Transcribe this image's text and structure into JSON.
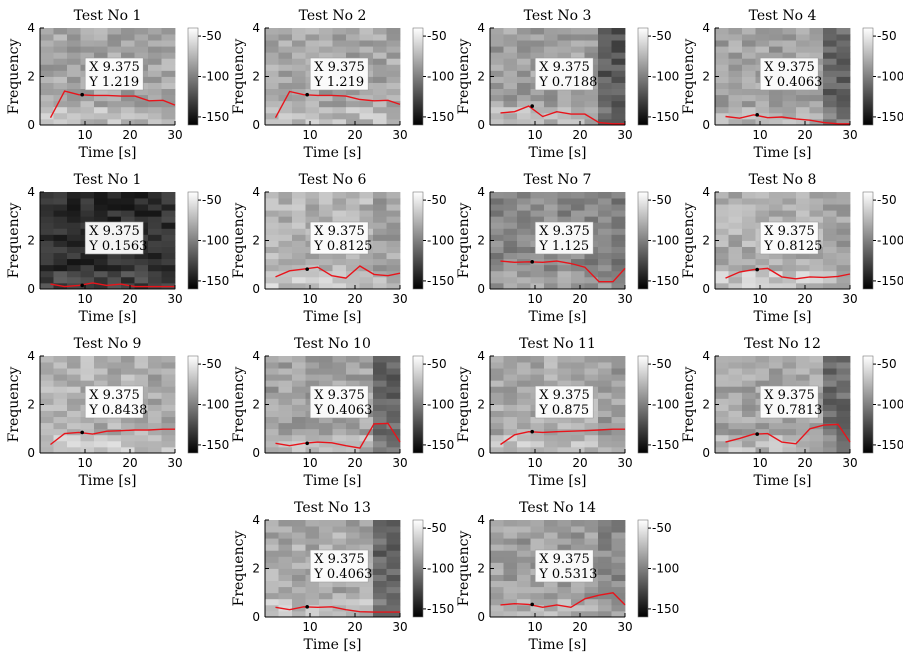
{
  "chart_data": [
    {
      "type": "heatmap",
      "title": "Test No 1",
      "xlabel": "Time [s]",
      "ylabel": "Frequency",
      "xlim": [
        0,
        30
      ],
      "ylim": [
        0,
        4
      ],
      "xticks": [
        "10",
        "20",
        "30"
      ],
      "yticks": [
        "0",
        "2",
        "4"
      ],
      "colorbar": {
        "ticks": [
          "-50",
          "-100",
          "-150"
        ],
        "range": [
          -160,
          -40
        ]
      },
      "base_level": -82,
      "late_level": -82,
      "line": {
        "x": [
          2.34,
          5.47,
          8.59,
          11.72,
          14.84,
          17.97,
          21.09,
          24.22,
          27.34,
          30.0
        ],
        "y": [
          0.3,
          1.4,
          1.25,
          1.22,
          1.22,
          1.19,
          1.19,
          1.0,
          1.02,
          0.82
        ]
      },
      "datatip": {
        "x_label": "X 9.375",
        "y_label": "Y 1.219"
      }
    },
    {
      "type": "heatmap",
      "title": "Test No 2",
      "xlabel": "Time [s]",
      "ylabel": "Frequency",
      "xlim": [
        0,
        30
      ],
      "ylim": [
        0,
        4
      ],
      "xticks": [
        "10",
        "20",
        "30"
      ],
      "yticks": [
        "0",
        "2",
        "4"
      ],
      "colorbar": {
        "ticks": [
          "-50",
          "-100",
          "-150"
        ],
        "range": [
          -160,
          -40
        ]
      },
      "base_level": -82,
      "late_level": -82,
      "line": {
        "x": [
          2.34,
          5.47,
          8.59,
          11.72,
          14.84,
          17.97,
          21.09,
          24.22,
          27.34,
          30.0
        ],
        "y": [
          0.3,
          1.38,
          1.25,
          1.22,
          1.22,
          1.19,
          1.05,
          1.0,
          1.02,
          0.85
        ]
      },
      "datatip": {
        "x_label": "X 9.375",
        "y_label": "Y 1.219"
      }
    },
    {
      "type": "heatmap",
      "title": "Test No 3",
      "xlabel": "Time [s]",
      "ylabel": "Frequency",
      "xlim": [
        0,
        30
      ],
      "ylim": [
        0,
        4
      ],
      "xticks": [
        "10",
        "20",
        "30"
      ],
      "yticks": [
        "0",
        "2",
        "4"
      ],
      "colorbar": {
        "ticks": [
          "-50",
          "-100",
          "-150"
        ],
        "range": [
          -160,
          -40
        ]
      },
      "base_level": -85,
      "late_level": -118,
      "line": {
        "x": [
          2.34,
          5.47,
          8.59,
          11.72,
          14.84,
          17.97,
          21.09,
          24.22,
          27.34,
          30.0
        ],
        "y": [
          0.5,
          0.55,
          0.78,
          0.35,
          0.55,
          0.45,
          0.45,
          0.1,
          0.05,
          0.05
        ]
      },
      "datatip": {
        "x_label": "X 9.375",
        "y_label": "Y 0.7188"
      }
    },
    {
      "type": "heatmap",
      "title": "Test No 4",
      "xlabel": "Time [s]",
      "ylabel": "Frequency",
      "xlim": [
        0,
        30
      ],
      "ylim": [
        0,
        4
      ],
      "xticks": [
        "10",
        "20",
        "30"
      ],
      "yticks": [
        "0",
        "2",
        "4"
      ],
      "colorbar": {
        "ticks": [
          "-50",
          "-100",
          "-150"
        ],
        "range": [
          -160,
          -40
        ]
      },
      "base_level": -84,
      "late_level": -112,
      "line": {
        "x": [
          2.34,
          5.47,
          8.59,
          11.72,
          14.84,
          17.97,
          21.09,
          24.22,
          27.34,
          30.0
        ],
        "y": [
          0.35,
          0.28,
          0.42,
          0.3,
          0.33,
          0.25,
          0.2,
          0.1,
          0.05,
          0.05
        ]
      },
      "datatip": {
        "x_label": "X 9.375",
        "y_label": "Y 0.4063"
      }
    },
    {
      "type": "heatmap",
      "title": "Test No 1",
      "xlabel": "Time [s]",
      "ylabel": "Frequency",
      "xlim": [
        0,
        30
      ],
      "ylim": [
        0,
        4
      ],
      "xticks": [
        "10",
        "20",
        "30"
      ],
      "yticks": [
        "0",
        "2",
        "4"
      ],
      "colorbar": {
        "ticks": [
          "-50",
          "-100",
          "-150"
        ],
        "range": [
          -160,
          -40
        ]
      },
      "base_level": -138,
      "late_level": -138,
      "line": {
        "x": [
          2.34,
          5.47,
          8.59,
          11.72,
          14.84,
          17.97,
          21.09,
          24.22,
          27.34,
          30.0
        ],
        "y": [
          0.2,
          0.1,
          0.15,
          0.25,
          0.15,
          0.2,
          0.1,
          0.1,
          0.1,
          0.1
        ]
      },
      "datatip": {
        "x_label": "X 9.375",
        "y_label": "Y 0.1563"
      }
    },
    {
      "type": "heatmap",
      "title": "Test No 6",
      "xlabel": "Time [s]",
      "ylabel": "Frequency",
      "xlim": [
        0,
        30
      ],
      "ylim": [
        0,
        4
      ],
      "xticks": [
        "10",
        "20",
        "30"
      ],
      "yticks": [
        "0",
        "2",
        "4"
      ],
      "colorbar": {
        "ticks": [
          "-50",
          "-100",
          "-150"
        ],
        "range": [
          -160,
          -40
        ]
      },
      "base_level": -76,
      "late_level": -84,
      "line": {
        "x": [
          2.34,
          5.47,
          8.59,
          11.72,
          14.84,
          17.97,
          21.09,
          24.22,
          27.34,
          30.0
        ],
        "y": [
          0.5,
          0.75,
          0.82,
          0.9,
          0.55,
          0.45,
          0.95,
          0.6,
          0.55,
          0.65
        ]
      },
      "datatip": {
        "x_label": "X 9.375",
        "y_label": "Y 0.8125"
      }
    },
    {
      "type": "heatmap",
      "title": "Test No 7",
      "xlabel": "Time [s]",
      "ylabel": "Frequency",
      "xlim": [
        0,
        30
      ],
      "ylim": [
        0,
        4
      ],
      "xticks": [
        "10",
        "20",
        "30"
      ],
      "yticks": [
        "0",
        "2",
        "4"
      ],
      "colorbar": {
        "ticks": [
          "-50",
          "-100",
          "-150"
        ],
        "range": [
          -160,
          -40
        ]
      },
      "base_level": -96,
      "late_level": -100,
      "line": {
        "x": [
          2.34,
          5.47,
          8.59,
          11.72,
          14.84,
          17.97,
          21.09,
          24.22,
          27.34,
          30.0
        ],
        "y": [
          1.15,
          1.1,
          1.12,
          1.1,
          1.15,
          1.05,
          0.9,
          0.3,
          0.3,
          0.85
        ]
      },
      "datatip": {
        "x_label": "X 9.375",
        "y_label": "Y 1.125"
      }
    },
    {
      "type": "heatmap",
      "title": "Test No 8",
      "xlabel": "Time [s]",
      "ylabel": "Frequency",
      "xlim": [
        0,
        30
      ],
      "ylim": [
        0,
        4
      ],
      "xticks": [
        "10",
        "20",
        "30"
      ],
      "yticks": [
        "0",
        "2",
        "4"
      ],
      "colorbar": {
        "ticks": [
          "-50",
          "-100",
          "-150"
        ],
        "range": [
          -160,
          -40
        ]
      },
      "base_level": -78,
      "late_level": -84,
      "line": {
        "x": [
          2.34,
          5.47,
          8.59,
          11.72,
          14.84,
          17.97,
          21.09,
          24.22,
          27.34,
          30.0
        ],
        "y": [
          0.45,
          0.7,
          0.8,
          0.85,
          0.5,
          0.42,
          0.5,
          0.48,
          0.52,
          0.62
        ]
      },
      "datatip": {
        "x_label": "X 9.375",
        "y_label": "Y 0.8125"
      }
    },
    {
      "type": "heatmap",
      "title": "Test No 9",
      "xlabel": "Time [s]",
      "ylabel": "Frequency",
      "xlim": [
        0,
        30
      ],
      "ylim": [
        0,
        4
      ],
      "xticks": [
        "10",
        "20",
        "30"
      ],
      "yticks": [
        "0",
        "2",
        "4"
      ],
      "colorbar": {
        "ticks": [
          "-50",
          "-100",
          "-150"
        ],
        "range": [
          -160,
          -40
        ]
      },
      "base_level": -77,
      "late_level": -80,
      "line": {
        "x": [
          2.34,
          5.47,
          8.59,
          11.72,
          14.84,
          17.97,
          21.09,
          24.22,
          27.34,
          30.0
        ],
        "y": [
          0.35,
          0.8,
          0.85,
          0.78,
          0.9,
          0.92,
          0.95,
          0.95,
          0.98,
          0.98
        ]
      },
      "datatip": {
        "x_label": "X 9.375",
        "y_label": "Y 0.8438"
      }
    },
    {
      "type": "heatmap",
      "title": "Test No 10",
      "xlabel": "Time [s]",
      "ylabel": "Frequency",
      "xlim": [
        0,
        30
      ],
      "ylim": [
        0,
        4
      ],
      "xticks": [
        "10",
        "20",
        "30"
      ],
      "yticks": [
        "0",
        "2",
        "4"
      ],
      "colorbar": {
        "ticks": [
          "-50",
          "-100",
          "-150"
        ],
        "range": [
          -160,
          -40
        ]
      },
      "base_level": -84,
      "late_level": -112,
      "line": {
        "x": [
          2.34,
          5.47,
          8.59,
          11.72,
          14.84,
          17.97,
          21.09,
          24.22,
          27.34,
          30.0
        ],
        "y": [
          0.4,
          0.3,
          0.4,
          0.45,
          0.42,
          0.3,
          0.2,
          1.2,
          1.22,
          0.45
        ]
      },
      "datatip": {
        "x_label": "X 9.375",
        "y_label": "Y 0.4063"
      }
    },
    {
      "type": "heatmap",
      "title": "Test No 11",
      "xlabel": "Time [s]",
      "ylabel": "Frequency",
      "xlim": [
        0,
        30
      ],
      "ylim": [
        0,
        4
      ],
      "xticks": [
        "10",
        "20",
        "30"
      ],
      "yticks": [
        "0",
        "2",
        "4"
      ],
      "colorbar": {
        "ticks": [
          "-50",
          "-100",
          "-150"
        ],
        "range": [
          -160,
          -40
        ]
      },
      "base_level": -80,
      "late_level": -86,
      "line": {
        "x": [
          2.34,
          5.47,
          8.59,
          11.72,
          14.84,
          17.97,
          21.09,
          24.22,
          27.34,
          30.0
        ],
        "y": [
          0.35,
          0.75,
          0.88,
          0.85,
          0.88,
          0.9,
          0.92,
          0.95,
          0.98,
          0.98
        ]
      },
      "datatip": {
        "x_label": "X 9.375",
        "y_label": "Y 0.875"
      }
    },
    {
      "type": "heatmap",
      "title": "Test No 12",
      "xlabel": "Time [s]",
      "ylabel": "Frequency",
      "xlim": [
        0,
        30
      ],
      "ylim": [
        0,
        4
      ],
      "xticks": [
        "10",
        "20",
        "30"
      ],
      "yticks": [
        "0",
        "2",
        "4"
      ],
      "colorbar": {
        "ticks": [
          "-50",
          "-100",
          "-150"
        ],
        "range": [
          -160,
          -40
        ]
      },
      "base_level": -82,
      "late_level": -110,
      "line": {
        "x": [
          2.34,
          5.47,
          8.59,
          11.72,
          14.84,
          17.97,
          21.09,
          24.22,
          27.34,
          30.0
        ],
        "y": [
          0.45,
          0.6,
          0.78,
          0.8,
          0.45,
          0.38,
          1.0,
          1.15,
          1.18,
          0.45
        ]
      },
      "datatip": {
        "x_label": "X 9.375",
        "y_label": "Y 0.7813"
      }
    },
    {
      "type": "heatmap",
      "title": "Test No 13",
      "xlabel": "Time [s]",
      "ylabel": "Frequency",
      "xlim": [
        0,
        30
      ],
      "ylim": [
        0,
        4
      ],
      "xticks": [
        "10",
        "20",
        "30"
      ],
      "yticks": [
        "0",
        "2",
        "4"
      ],
      "colorbar": {
        "ticks": [
          "-50",
          "-100",
          "-150"
        ],
        "range": [
          -160,
          -40
        ]
      },
      "base_level": -80,
      "late_level": -112,
      "line": {
        "x": [
          2.34,
          5.47,
          8.59,
          11.72,
          14.84,
          17.97,
          21.09,
          24.22,
          27.34,
          30.0
        ],
        "y": [
          0.4,
          0.3,
          0.42,
          0.4,
          0.42,
          0.3,
          0.22,
          0.2,
          0.2,
          0.2
        ]
      },
      "datatip": {
        "x_label": "X 9.375",
        "y_label": "Y 0.4063"
      }
    },
    {
      "type": "heatmap",
      "title": "Test No 14",
      "xlabel": "Time [s]",
      "ylabel": "Frequency",
      "xlim": [
        0,
        30
      ],
      "ylim": [
        0,
        4
      ],
      "xticks": [
        "10",
        "20",
        "30"
      ],
      "yticks": [
        "0",
        "2",
        "4"
      ],
      "colorbar": {
        "ticks": [
          "-50",
          "-100",
          "-150"
        ],
        "range": [
          -160,
          -40
        ]
      },
      "base_level": -86,
      "late_level": -96,
      "line": {
        "x": [
          2.34,
          5.47,
          8.59,
          11.72,
          14.84,
          17.97,
          21.09,
          24.22,
          27.34,
          30.0
        ],
        "y": [
          0.5,
          0.55,
          0.52,
          0.4,
          0.5,
          0.4,
          0.75,
          0.9,
          1.0,
          0.5
        ]
      },
      "datatip": {
        "x_label": "X 9.375",
        "y_label": "Y 0.5313"
      }
    }
  ]
}
